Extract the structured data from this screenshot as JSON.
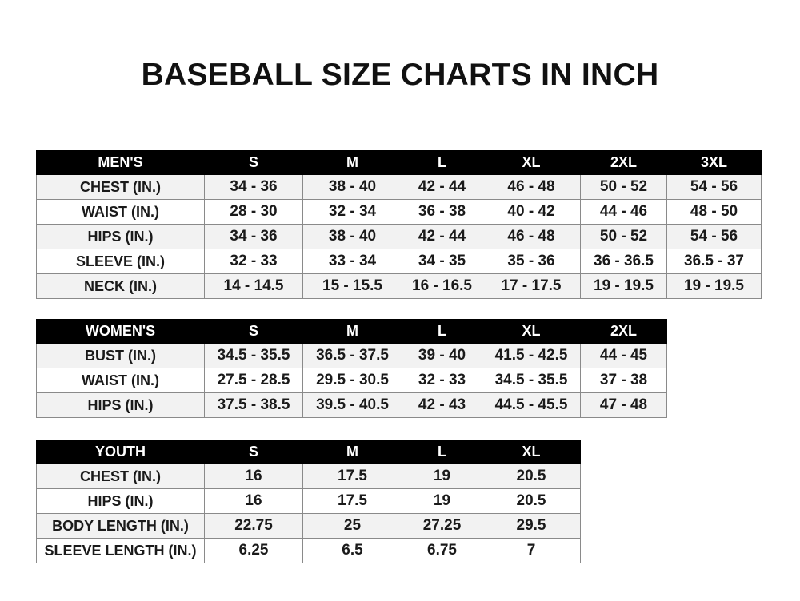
{
  "title": "BASEBALL SIZE CHARTS IN INCH",
  "tables": {
    "men": {
      "header": [
        "MEN'S",
        "S",
        "M",
        "L",
        "XL",
        "2XL",
        "3XL"
      ],
      "rows": [
        [
          "CHEST (IN.)",
          "34 - 36",
          "38 - 40",
          "42 - 44",
          "46 - 48",
          "50 - 52",
          "54 - 56"
        ],
        [
          "WAIST (IN.)",
          "28 - 30",
          "32 - 34",
          "36 - 38",
          "40 - 42",
          "44 - 46",
          "48 - 50"
        ],
        [
          "HIPS (IN.)",
          "34 - 36",
          "38 - 40",
          "42 - 44",
          "46 - 48",
          "50 - 52",
          "54 - 56"
        ],
        [
          "SLEEVE (IN.)",
          "32 - 33",
          "33 - 34",
          "34 - 35",
          "35 - 36",
          "36 - 36.5",
          "36.5 - 37"
        ],
        [
          "NECK (IN.)",
          "14 - 14.5",
          "15 - 15.5",
          "16 - 16.5",
          "17 - 17.5",
          "19 - 19.5",
          "19 - 19.5"
        ]
      ]
    },
    "women": {
      "header": [
        "WOMEN'S",
        "S",
        "M",
        "L",
        "XL",
        "2XL"
      ],
      "rows": [
        [
          "BUST (IN.)",
          "34.5 - 35.5",
          "36.5 - 37.5",
          "39 - 40",
          "41.5 - 42.5",
          "44 - 45"
        ],
        [
          "WAIST (IN.)",
          "27.5 - 28.5",
          "29.5 - 30.5",
          "32 - 33",
          "34.5 - 35.5",
          "37 - 38"
        ],
        [
          "HIPS (IN.)",
          "37.5 - 38.5",
          "39.5 - 40.5",
          "42 - 43",
          "44.5 - 45.5",
          "47 - 48"
        ]
      ]
    },
    "youth": {
      "header": [
        "YOUTH",
        "S",
        "M",
        "L",
        "XL"
      ],
      "rows": [
        [
          "CHEST (IN.)",
          "16",
          "17.5",
          "19",
          "20.5"
        ],
        [
          "HIPS (IN.)",
          "16",
          "17.5",
          "19",
          "20.5"
        ],
        [
          "BODY LENGTH (IN.)",
          "22.75",
          "25",
          "27.25",
          "29.5"
        ],
        [
          "SLEEVE LENGTH (IN.)",
          "6.25",
          "6.5",
          "6.75",
          "7"
        ]
      ]
    }
  }
}
